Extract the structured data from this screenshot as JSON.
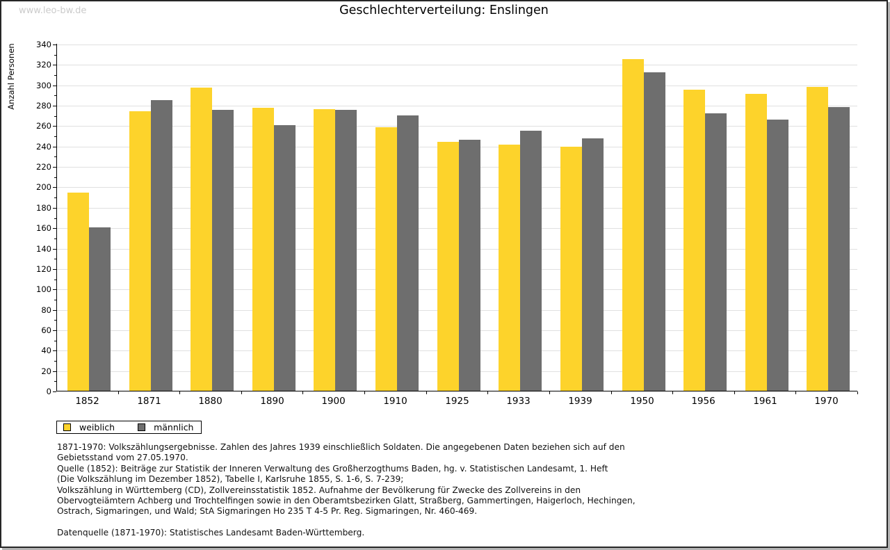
{
  "watermark": "www.leo-bw.de",
  "title": "Geschlechterverteilung: Enslingen",
  "chart_data": {
    "type": "bar",
    "title": "Geschlechterverteilung: Enslingen",
    "xlabel": "",
    "ylabel": "Anzahl Personen",
    "ylim": [
      0,
      340
    ],
    "ytick_major_step": 20,
    "ytick_minor_step": 10,
    "grid": true,
    "legend_position": "bottom-left",
    "categories": [
      "1852",
      "1871",
      "1880",
      "1890",
      "1900",
      "1910",
      "1925",
      "1933",
      "1939",
      "1950",
      "1956",
      "1961",
      "1970"
    ],
    "series": [
      {
        "name": "weiblich",
        "color": "#fdd32b",
        "values": [
          194,
          274,
          297,
          277,
          276,
          258,
          244,
          241,
          239,
          325,
          295,
          291,
          298
        ]
      },
      {
        "name": "männlich",
        "color": "#6e6e6e",
        "values": [
          160,
          285,
          275,
          260,
          275,
          270,
          246,
          255,
          247,
          312,
          272,
          266,
          278
        ]
      }
    ]
  },
  "legend": {
    "items": [
      {
        "label": "weiblich",
        "color": "#fdd32b"
      },
      {
        "label": "männlich",
        "color": "#6e6e6e"
      }
    ]
  },
  "footer": {
    "lines": [
      "1871-1970: Volkszählungsergebnisse. Zahlen des Jahres 1939 einschließlich Soldaten. Die angegebenen Daten beziehen sich auf den",
      "Gebietsstand vom 27.05.1970.",
      "Quelle (1852): Beiträge zur Statistik der Inneren Verwaltung des Großherzogthums Baden, hg. v. Statistischen Landesamt, 1. Heft",
      "(Die Volkszählung im Dezember 1852), Tabelle I, Karlsruhe 1855, S. 1-6, S. 7-239;",
      "Volkszählung in Württemberg (CD), Zollvereinsstatistik 1852. Aufnahme der Bevölkerung für Zwecke des Zollvereins in den",
      "Obervogteiämtern Achberg und Trochtelfingen sowie in den Oberamtsbezirken Glatt, Straßberg, Gammertingen, Haigerloch, Hechingen,",
      "Ostrach, Sigmaringen, und Wald; StA Sigmaringen Ho 235 T 4-5 Pr. Reg. Sigmaringen, Nr. 460-469."
    ],
    "datenquelle": "Datenquelle (1871-1970): Statistisches Landesamt Baden-Württemberg."
  }
}
